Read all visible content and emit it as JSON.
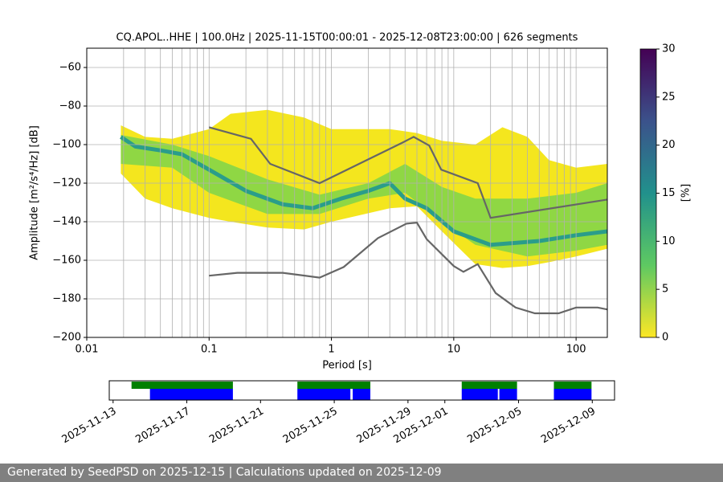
{
  "chart_data": [
    {
      "type": "ppsd",
      "title": "CQ.APOL..HHE | 100.0Hz | 2025-11-15T00:00:01 - 2025-12-08T23:00:00 | 626 segments",
      "xlabel": "Period [s]",
      "ylabel": "Amplitude [m²/s⁴/Hz] [dB]",
      "xscale": "log",
      "xlim": [
        0.01,
        180
      ],
      "xticks": [
        0.01,
        0.1,
        1,
        10,
        100
      ],
      "xgrid_minor": [
        0.02,
        0.03,
        0.04,
        0.05,
        0.06,
        0.07,
        0.08,
        0.09,
        0.2,
        0.3,
        0.4,
        0.5,
        0.6,
        0.7,
        0.8,
        0.9,
        2,
        3,
        4,
        5,
        6,
        7,
        8,
        9,
        20,
        30,
        40,
        50,
        60,
        70,
        80,
        90
      ],
      "ylim": [
        -200,
        -50
      ],
      "yticks": [
        {
          "value": -200,
          "label": "−200"
        },
        {
          "value": -180,
          "label": "−180"
        },
        {
          "value": -160,
          "label": "−160"
        },
        {
          "value": -140,
          "label": "−140"
        },
        {
          "value": -120,
          "label": "−120"
        },
        {
          "value": -100,
          "label": "−100"
        },
        {
          "value": -80,
          "label": "−80"
        },
        {
          "value": -60,
          "label": "−60"
        }
      ],
      "grid": true,
      "density_bands": [
        {
          "color": "#f4e61e",
          "x": [
            0.019,
            0.03,
            0.05,
            0.1,
            0.15,
            0.3,
            0.6,
            1,
            3,
            5,
            8,
            15,
            25,
            40,
            60,
            100,
            180
          ],
          "high": [
            -90,
            -96,
            -97,
            -92,
            -84,
            -82,
            -86,
            -92,
            -92,
            -94,
            -98,
            -100,
            -91,
            -96,
            -108,
            -112,
            -110
          ],
          "low": [
            -115,
            -128,
            -133,
            -138,
            -140,
            -143,
            -144,
            -140,
            -133,
            -132,
            -145,
            -162,
            -164,
            -163,
            -161,
            -158,
            -154
          ]
        },
        {
          "color": "#8fd744",
          "x": [
            0.019,
            0.05,
            0.1,
            0.3,
            0.8,
            2,
            4,
            8,
            15,
            40,
            100,
            180
          ],
          "high": [
            -95,
            -100,
            -106,
            -118,
            -126,
            -120,
            -110,
            -122,
            -128,
            -128,
            -125,
            -120
          ],
          "low": [
            -110,
            -112,
            -125,
            -136,
            -136,
            -128,
            -125,
            -140,
            -152,
            -158,
            -155,
            -152
          ]
        }
      ],
      "mode": {
        "color": "#2a9d8a",
        "x": [
          0.019,
          0.025,
          0.04,
          0.06,
          0.1,
          0.2,
          0.4,
          0.7,
          1.2,
          2,
          3,
          4,
          6,
          10,
          20,
          50,
          100,
          180
        ],
        "values": [
          -96,
          -101,
          -103,
          -105,
          -113,
          -124,
          -131,
          -133,
          -128,
          -124,
          -120,
          -128,
          -133,
          -145,
          -152,
          -150,
          -147,
          -145
        ]
      },
      "noise_models": [
        {
          "color": "#666666",
          "x": [
            0.1,
            0.22,
            0.316,
            0.8,
            3.8,
            4.7,
            6.3,
            7.9,
            15.7,
            20,
            180
          ],
          "values": [
            -91,
            -97,
            -110,
            -120,
            -99,
            -96,
            -100.5,
            -113,
            -120,
            -138,
            -128.5
          ]
        },
        {
          "color": "#666666",
          "x": [
            0.1,
            0.17,
            0.4,
            0.8,
            1.26,
            2.4,
            4.1,
            5,
            6,
            10,
            12,
            15.7,
            22,
            32,
            46,
            72,
            100,
            150,
            180
          ],
          "values": [
            -168,
            -166.5,
            -166.5,
            -169,
            -163.5,
            -148.5,
            -141,
            -140.5,
            -149,
            -163,
            -166,
            -162,
            -177,
            -184.5,
            -187.5,
            -187.5,
            -184.5,
            -184.5,
            -185.5
          ]
        }
      ],
      "colorbar": {
        "label": "[%]",
        "lim": [
          0,
          30
        ],
        "ticks": [
          0,
          5,
          10,
          15,
          20,
          25,
          30
        ],
        "colormap": [
          "#fde725",
          "#5ec962",
          "#21918c",
          "#3b528b",
          "#440154"
        ]
      }
    },
    {
      "type": "timeline",
      "xlim": [
        "2025-11-12T19:00:00",
        "2025-12-10T05:00:00"
      ],
      "xticks": [
        "2025-11-13",
        "2025-11-17",
        "2025-11-21",
        "2025-11-25",
        "2025-11-29",
        "2025-12-01",
        "2025-12-05",
        "2025-12-09"
      ],
      "available_color": "#008000",
      "used_color": "#0000ff",
      "available": [
        [
          "2025-11-14T00:00:00",
          "2025-11-19T12:00:00"
        ],
        [
          "2025-11-23T00:00:00",
          "2025-11-26T23:00:00"
        ],
        [
          "2025-12-01T22:00:00",
          "2025-12-04T22:00:00"
        ],
        [
          "2025-12-06T22:00:00",
          "2025-12-08T23:00:00"
        ]
      ],
      "used": [
        [
          "2025-11-15T00:00:00",
          "2025-11-19T12:00:00"
        ],
        [
          "2025-11-23T00:00:00",
          "2025-11-25T21:00:00"
        ],
        [
          "2025-11-26T00:00:00",
          "2025-11-26T23:00:00"
        ],
        [
          "2025-12-01T22:00:00",
          "2025-12-03T21:00:00"
        ],
        [
          "2025-12-03T23:00:00",
          "2025-12-04T22:00:00"
        ],
        [
          "2025-12-06T22:00:00",
          "2025-12-08T23:00:00"
        ]
      ]
    }
  ],
  "footer": "Generated by SeedPSD on 2025-12-15 | Calculations updated on 2025-12-09"
}
